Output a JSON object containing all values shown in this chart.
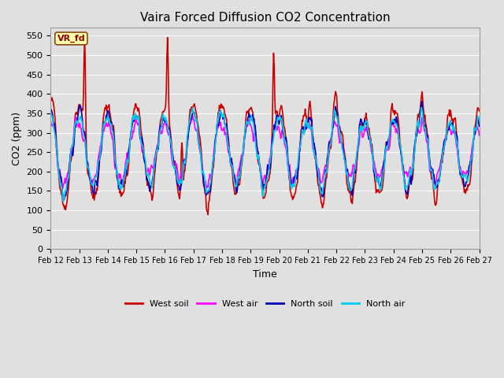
{
  "title": "Vaira Forced Diffusion CO2 Concentration",
  "xlabel": "Time",
  "ylabel": "CO2 (ppm)",
  "ylim": [
    0,
    570
  ],
  "yticks": [
    0,
    50,
    100,
    150,
    200,
    250,
    300,
    350,
    400,
    450,
    500,
    550
  ],
  "xticklabels": [
    "Feb 12",
    "Feb 13",
    "Feb 14",
    "Feb 15",
    "Feb 16",
    "Feb 17",
    "Feb 18",
    "Feb 19",
    "Feb 20",
    "Feb 21",
    "Feb 22",
    "Feb 23",
    "Feb 24",
    "Feb 25",
    "Feb 26",
    "Feb 27"
  ],
  "series_colors": [
    "#cc0000",
    "#ff00ff",
    "#0000bb",
    "#00ccee"
  ],
  "series_labels": [
    "West soil",
    "West air",
    "North soil",
    "North air"
  ],
  "series_lw": [
    1.2,
    1.2,
    1.2,
    1.2
  ],
  "vr_fd_label": "VR_fd",
  "bg_color": "#e0e0e0",
  "plot_bg_color": "#e0e0e0",
  "grid_color": "#ffffff",
  "n_points": 720,
  "seed": 42
}
